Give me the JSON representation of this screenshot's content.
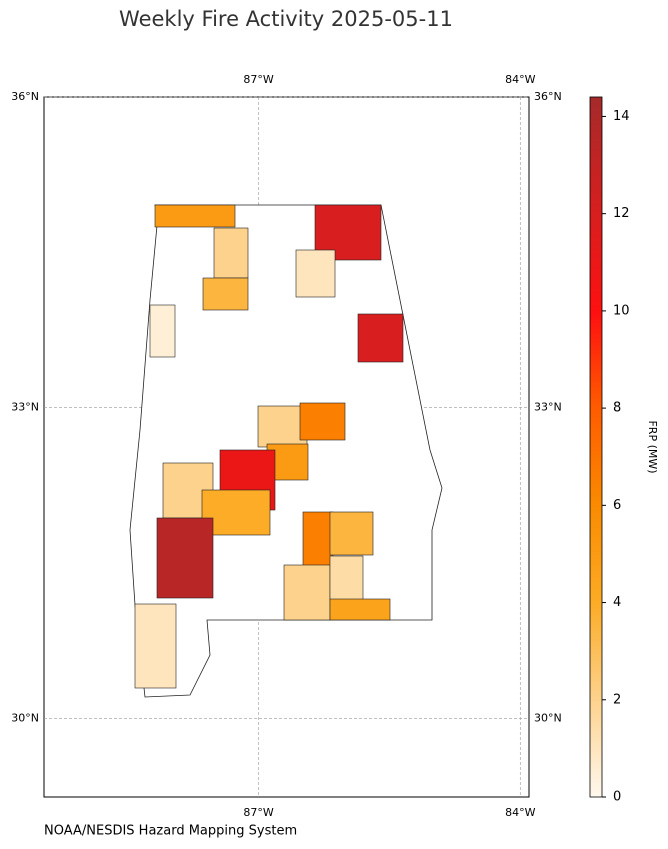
{
  "title": "Weekly Fire Activity 2025-05-11",
  "source": "NOAA/NESDIS Hazard Mapping System",
  "map": {
    "xlim": [
      -89.46,
      -83.9
    ],
    "ylim": [
      29.24,
      36
    ],
    "xticks": [
      {
        "value": -87,
        "label": "87°W"
      },
      {
        "value": -84,
        "label": "84°W"
      }
    ],
    "yticks": [
      {
        "value": 36,
        "label": "36°N"
      },
      {
        "value": 33,
        "label": "33°N"
      },
      {
        "value": 30,
        "label": "30°N"
      }
    ],
    "grid": true
  },
  "colorbar": {
    "label": "FRP (MW)",
    "lim": [
      0,
      14.4
    ],
    "ticks": [
      0,
      2,
      4,
      6,
      8,
      10,
      12,
      14
    ]
  },
  "fire_counties": {
    "values": [
      5,
      2,
      12,
      1,
      3.5,
      0.5,
      12,
      2,
      6.5,
      5,
      11,
      2,
      4,
      13.5,
      6.5,
      3.5,
      2,
      1.5,
      4.5,
      1
    ]
  }
}
